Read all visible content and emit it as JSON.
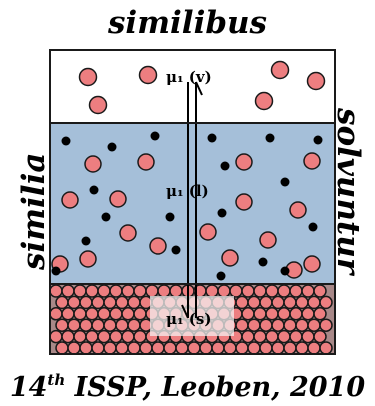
{
  "caption_top": "similibus",
  "caption_left": "similia",
  "caption_right": "solvuntur",
  "caption_bottom": {
    "prefix": "14",
    "superscript": "th",
    "suffix": " ISSP, Leoben, 2010"
  },
  "phases": [
    {
      "label": "μ₁ (v)",
      "color": "#ffffff"
    },
    {
      "label": "μ₁ (l)",
      "color": "#a5bfd9"
    },
    {
      "label": "μ₁ (s)",
      "color": "#a88888"
    }
  ],
  "colors": {
    "solute_particle": "#ed7e80",
    "solvent_particle": "#000000",
    "outline": "#1a1a1a"
  }
}
